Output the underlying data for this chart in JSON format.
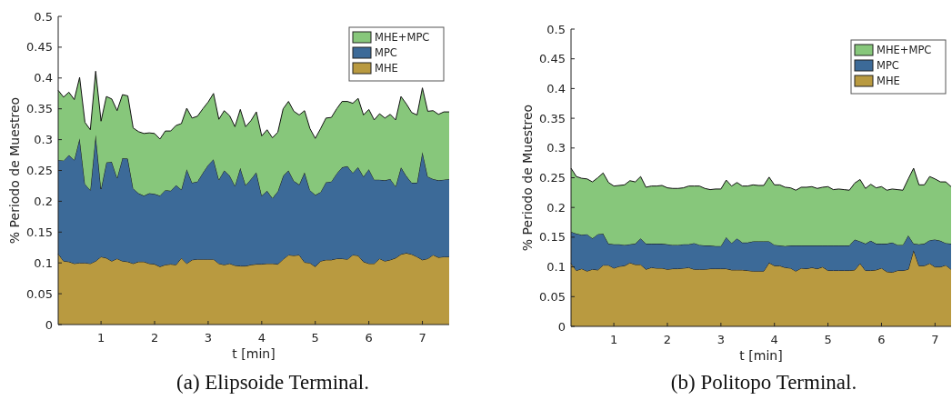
{
  "chart_data": [
    {
      "type": "area",
      "stacked": true,
      "title": "(a) Elipsoide Terminal.",
      "xlabel": "t [min]",
      "ylabel": "% Periodo de Muestreo",
      "legend": "top right",
      "xlim": [
        0.2,
        7.5
      ],
      "xticks": [
        1,
        2,
        3,
        4,
        5,
        6,
        7
      ],
      "ylim": [
        0,
        0.5
      ],
      "yticks": [
        0,
        0.05,
        0.1,
        0.15,
        0.2,
        0.25,
        0.3,
        0.35,
        0.4,
        0.45,
        0.5
      ],
      "x": [
        0.2,
        0.3,
        0.4,
        0.5,
        0.6,
        0.7,
        0.8,
        0.9,
        1.0,
        1.1,
        1.2,
        1.3,
        1.4,
        1.5,
        1.6,
        1.7,
        1.8,
        1.9,
        2.0,
        2.1,
        2.2,
        2.3,
        2.4,
        2.5,
        2.6,
        2.7,
        2.8,
        2.9,
        3.0,
        3.1,
        3.2,
        3.3,
        3.4,
        3.5,
        3.6,
        3.7,
        3.8,
        3.9,
        4.0,
        4.1,
        4.2,
        4.3,
        4.4,
        4.5,
        4.6,
        4.7,
        4.8,
        4.9,
        5.0,
        5.1,
        5.2,
        5.3,
        5.4,
        5.5,
        5.6,
        5.7,
        5.8,
        5.9,
        6.0,
        6.1,
        6.2,
        6.3,
        6.4,
        6.5,
        6.6,
        6.7,
        6.8,
        6.9,
        7.0,
        7.1,
        7.2,
        7.3,
        7.4,
        7.5
      ],
      "series": [
        {
          "name": "MHE",
          "color": "#b99a40",
          "values": [
            0.115,
            0.103,
            0.102,
            0.099,
            0.1,
            0.1,
            0.099,
            0.103,
            0.11,
            0.108,
            0.103,
            0.107,
            0.103,
            0.102,
            0.099,
            0.102,
            0.102,
            0.099,
            0.098,
            0.094,
            0.097,
            0.098,
            0.097,
            0.108,
            0.099,
            0.105,
            0.106,
            0.106,
            0.106,
            0.106,
            0.099,
            0.097,
            0.099,
            0.096,
            0.095,
            0.095,
            0.097,
            0.098,
            0.098,
            0.099,
            0.099,
            0.098,
            0.106,
            0.113,
            0.112,
            0.113,
            0.101,
            0.1,
            0.094,
            0.103,
            0.105,
            0.105,
            0.107,
            0.107,
            0.106,
            0.113,
            0.112,
            0.102,
            0.099,
            0.099,
            0.107,
            0.103,
            0.105,
            0.108,
            0.114,
            0.116,
            0.114,
            0.11,
            0.105,
            0.107,
            0.113,
            0.109,
            0.11,
            0.11
          ]
        },
        {
          "name": "MPC",
          "color": "#3c6a98",
          "values": [
            0.152,
            0.163,
            0.173,
            0.168,
            0.202,
            0.128,
            0.119,
            0.205,
            0.11,
            0.155,
            0.161,
            0.131,
            0.167,
            0.167,
            0.122,
            0.111,
            0.107,
            0.114,
            0.114,
            0.115,
            0.121,
            0.119,
            0.129,
            0.111,
            0.153,
            0.125,
            0.126,
            0.14,
            0.153,
            0.162,
            0.136,
            0.153,
            0.143,
            0.129,
            0.159,
            0.131,
            0.139,
            0.149,
            0.111,
            0.118,
            0.106,
            0.118,
            0.135,
            0.137,
            0.121,
            0.114,
            0.146,
            0.118,
            0.116,
            0.112,
            0.126,
            0.127,
            0.138,
            0.148,
            0.151,
            0.133,
            0.143,
            0.138,
            0.153,
            0.136,
            0.128,
            0.131,
            0.131,
            0.116,
            0.141,
            0.125,
            0.116,
            0.12,
            0.175,
            0.133,
            0.123,
            0.125,
            0.125,
            0.126
          ]
        },
        {
          "name": "MHE+MPC",
          "color": "#87c77b",
          "values": [
            0.113,
            0.103,
            0.102,
            0.098,
            0.099,
            0.1,
            0.098,
            0.103,
            0.11,
            0.107,
            0.102,
            0.109,
            0.103,
            0.102,
            0.098,
            0.1,
            0.101,
            0.098,
            0.098,
            0.092,
            0.096,
            0.097,
            0.097,
            0.107,
            0.099,
            0.105,
            0.106,
            0.104,
            0.102,
            0.107,
            0.098,
            0.097,
            0.097,
            0.096,
            0.095,
            0.095,
            0.095,
            0.098,
            0.097,
            0.099,
            0.098,
            0.096,
            0.109,
            0.112,
            0.113,
            0.113,
            0.1,
            0.1,
            0.092,
            0.103,
            0.104,
            0.104,
            0.105,
            0.107,
            0.105,
            0.113,
            0.112,
            0.1,
            0.097,
            0.097,
            0.107,
            0.101,
            0.105,
            0.108,
            0.115,
            0.117,
            0.114,
            0.11,
            0.104,
            0.106,
            0.111,
            0.107,
            0.11,
            0.109
          ]
        }
      ]
    },
    {
      "type": "area",
      "stacked": true,
      "title": "(b) Politopo Terminal.",
      "xlabel": "t [min]",
      "ylabel": "% Periodo de Muestreo",
      "legend": "top right",
      "xlim": [
        0.2,
        7.3
      ],
      "xticks": [
        1,
        2,
        3,
        4,
        5,
        6,
        7
      ],
      "ylim": [
        0,
        0.5
      ],
      "yticks": [
        0,
        0.05,
        0.1,
        0.15,
        0.2,
        0.25,
        0.3,
        0.35,
        0.4,
        0.45,
        0.5
      ],
      "x": [
        0.2,
        0.3,
        0.4,
        0.5,
        0.6,
        0.7,
        0.8,
        0.9,
        1.0,
        1.1,
        1.2,
        1.3,
        1.4,
        1.5,
        1.6,
        1.7,
        1.8,
        1.9,
        2.0,
        2.1,
        2.2,
        2.3,
        2.4,
        2.5,
        2.6,
        2.7,
        2.8,
        2.9,
        3.0,
        3.1,
        3.2,
        3.3,
        3.4,
        3.5,
        3.6,
        3.7,
        3.8,
        3.9,
        4.0,
        4.1,
        4.2,
        4.3,
        4.4,
        4.5,
        4.6,
        4.7,
        4.8,
        4.9,
        5.0,
        5.1,
        5.2,
        5.3,
        5.4,
        5.5,
        5.6,
        5.7,
        5.8,
        5.9,
        6.0,
        6.1,
        6.2,
        6.3,
        6.4,
        6.5,
        6.6,
        6.7,
        6.8,
        6.9,
        7.0,
        7.1,
        7.2,
        7.3
      ],
      "series": [
        {
          "name": "MHE",
          "color": "#b99a40",
          "values": [
            0.106,
            0.094,
            0.097,
            0.093,
            0.096,
            0.095,
            0.103,
            0.103,
            0.098,
            0.101,
            0.102,
            0.107,
            0.104,
            0.104,
            0.096,
            0.099,
            0.098,
            0.098,
            0.096,
            0.097,
            0.097,
            0.098,
            0.099,
            0.096,
            0.096,
            0.096,
            0.097,
            0.097,
            0.097,
            0.097,
            0.095,
            0.095,
            0.095,
            0.094,
            0.093,
            0.093,
            0.093,
            0.107,
            0.102,
            0.102,
            0.099,
            0.098,
            0.093,
            0.098,
            0.097,
            0.099,
            0.097,
            0.1,
            0.094,
            0.094,
            0.094,
            0.094,
            0.094,
            0.095,
            0.106,
            0.094,
            0.094,
            0.095,
            0.098,
            0.092,
            0.091,
            0.094,
            0.094,
            0.096,
            0.128,
            0.102,
            0.102,
            0.106,
            0.1,
            0.1,
            0.103,
            0.096
          ]
        },
        {
          "name": "MPC",
          "color": "#3c6a98",
          "values": [
            0.053,
            0.062,
            0.057,
            0.062,
            0.052,
            0.06,
            0.053,
            0.036,
            0.04,
            0.037,
            0.035,
            0.031,
            0.035,
            0.044,
            0.043,
            0.04,
            0.041,
            0.041,
            0.042,
            0.04,
            0.04,
            0.04,
            0.039,
            0.044,
            0.041,
            0.04,
            0.039,
            0.038,
            0.038,
            0.053,
            0.045,
            0.053,
            0.046,
            0.047,
            0.05,
            0.05,
            0.05,
            0.036,
            0.035,
            0.034,
            0.036,
            0.038,
            0.043,
            0.038,
            0.039,
            0.037,
            0.039,
            0.036,
            0.042,
            0.042,
            0.042,
            0.042,
            0.042,
            0.051,
            0.037,
            0.045,
            0.05,
            0.044,
            0.041,
            0.047,
            0.05,
            0.043,
            0.043,
            0.057,
            0.011,
            0.036,
            0.037,
            0.039,
            0.046,
            0.044,
            0.037,
            0.043
          ]
        },
        {
          "name": "MHE+MPC",
          "color": "#87c77b",
          "values": [
            0.107,
            0.096,
            0.095,
            0.093,
            0.095,
            0.095,
            0.102,
            0.103,
            0.098,
            0.099,
            0.101,
            0.107,
            0.104,
            0.104,
            0.095,
            0.097,
            0.097,
            0.098,
            0.095,
            0.095,
            0.095,
            0.095,
            0.098,
            0.096,
            0.099,
            0.096,
            0.094,
            0.096,
            0.096,
            0.096,
            0.096,
            0.094,
            0.095,
            0.095,
            0.095,
            0.094,
            0.094,
            0.108,
            0.101,
            0.102,
            0.099,
            0.097,
            0.093,
            0.098,
            0.098,
            0.099,
            0.096,
            0.098,
            0.099,
            0.094,
            0.095,
            0.094,
            0.093,
            0.095,
            0.104,
            0.093,
            0.095,
            0.094,
            0.096,
            0.09,
            0.09,
            0.093,
            0.092,
            0.095,
            0.127,
            0.1,
            0.099,
            0.107,
            0.102,
            0.099,
            0.103,
            0.096
          ]
        }
      ]
    }
  ]
}
